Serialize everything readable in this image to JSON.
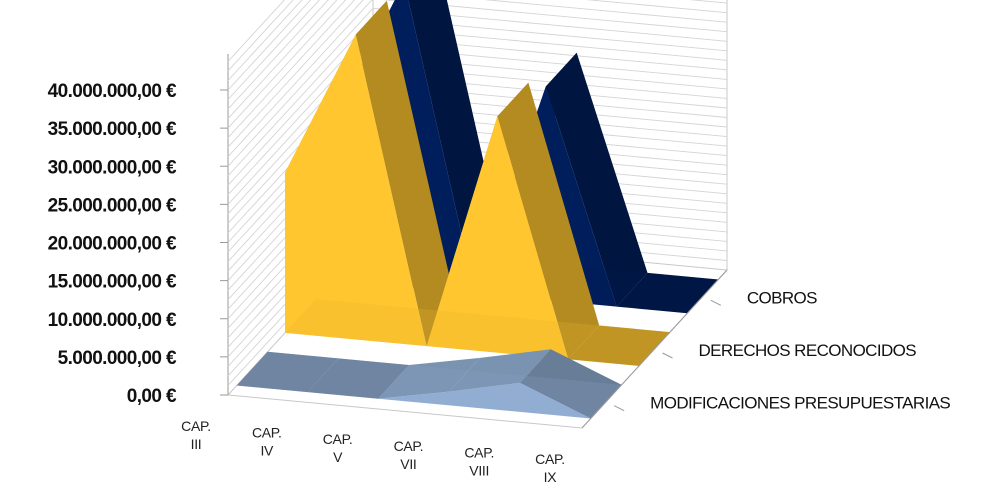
{
  "chart_data": {
    "type": "area",
    "title": "",
    "categories": [
      [
        "CAP.",
        "III"
      ],
      [
        "CAP.",
        "IV"
      ],
      [
        "CAP.",
        "V"
      ],
      [
        "CAP.",
        "VII"
      ],
      [
        "CAP.",
        "VIII"
      ],
      [
        "CAP.",
        "IX"
      ]
    ],
    "y_ticks": [
      "0,00 €",
      "5.000.000,00 €",
      "10.000.000,00 €",
      "15.000.000,00 €",
      "20.000.000,00 €",
      "25.000.000,00 €",
      "30.000.000,00 €",
      "35.000.000,00 €",
      "40.000.000,00 €"
    ],
    "ylim": [
      0,
      40000000
    ],
    "grid": true,
    "series": [
      {
        "name": "MODIFICACIONES PRESUPUESTARIAS",
        "values": [
          0,
          0,
          0,
          1800000,
          3800000,
          0
        ],
        "color": "#95B3D7"
      },
      {
        "name": "DERECHOS RECONOCIDOS",
        "values": [
          21000000,
          40000000,
          0,
          31000000,
          0,
          0
        ],
        "color": "#FFC62F"
      },
      {
        "name": "COBROS",
        "values": [
          21000000,
          40000000,
          0,
          28000000,
          0,
          0
        ],
        "color": "#001E5C"
      }
    ]
  }
}
